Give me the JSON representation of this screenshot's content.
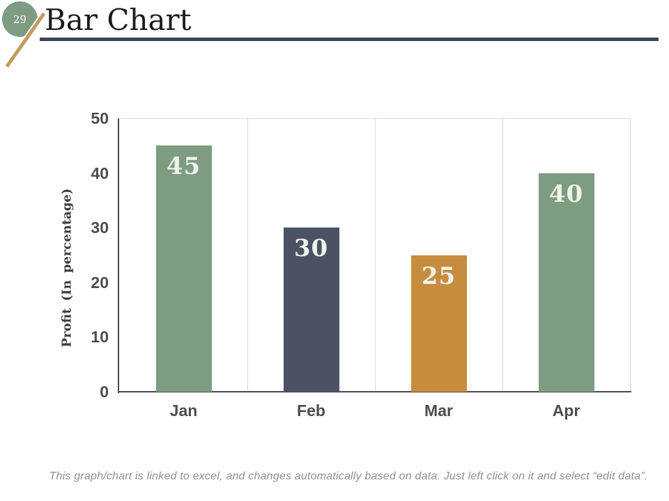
{
  "slide": {
    "page_number": "29",
    "title": "Bar Chart",
    "footer_note": "This graph/chart is linked to excel, and changes automatically based on data. Just left click on it and select “edit data”."
  },
  "colors": {
    "accent_green": "#7d9c81",
    "accent_navy": "#4a5264",
    "accent_gold": "#c78d3f",
    "slash_gold": "#c49a5e",
    "title_underline": "#3d4554",
    "axis_line": "#4a4a4a",
    "gridline": "#d9d9d9",
    "tick_label": "#4d4d4d",
    "bar_label_text": "#eff3ec",
    "footer_text": "#8f8f8f"
  },
  "chart_data": {
    "type": "bar",
    "categories": [
      "Jan",
      "Feb",
      "Mar",
      "Apr"
    ],
    "values": [
      45,
      30,
      25,
      40
    ],
    "data_labels": [
      "45",
      "30",
      "25",
      "40"
    ],
    "bar_colors": [
      "#7d9c81",
      "#4a5264",
      "#c78d3f",
      "#7d9c81"
    ],
    "title": "",
    "xlabel": "",
    "ylabel": "Profit (In percentage)",
    "ylim": [
      0,
      50
    ],
    "yticks": [
      0,
      10,
      20,
      30,
      40,
      50
    ],
    "grid": "vertical-category-separators",
    "legend": "none"
  }
}
